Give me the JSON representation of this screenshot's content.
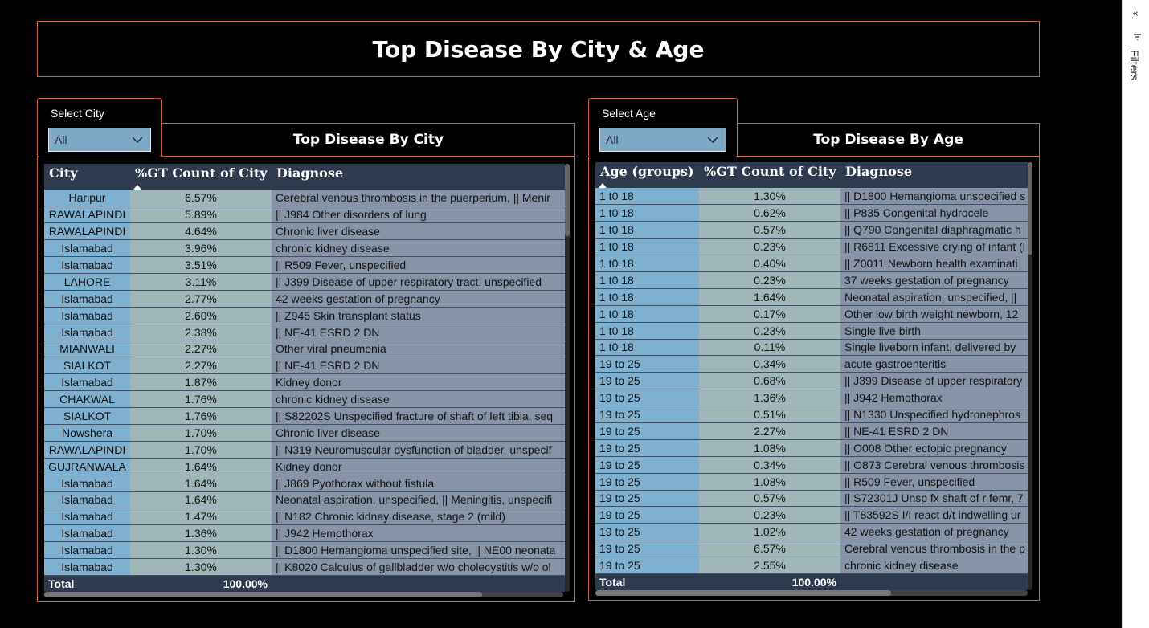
{
  "title": "Top Disease By City & Age",
  "filters_pane": {
    "collapse_icon": "double-chevron-left-icon",
    "filter_icon": "filter-icon",
    "label": "Filters"
  },
  "city_slicer": {
    "label": "Select City",
    "value": "All"
  },
  "age_slicer": {
    "label": "Select Age",
    "value": "All"
  },
  "city_table": {
    "title": "Top Disease By City",
    "columns": [
      "City",
      "%GT Count of City",
      "Diagnose"
    ],
    "sorted_column": "%GT Count of City",
    "rows": [
      [
        "Haripur",
        "6.57%",
        "Cerebral venous thrombosis in the puerperium, || Menir"
      ],
      [
        "RAWALAPINDI",
        "5.89%",
        "|| J984 Other disorders of lung"
      ],
      [
        "RAWALAPINDI",
        "4.64%",
        "Chronic liver disease"
      ],
      [
        "Islamabad",
        "3.96%",
        "chronic kidney disease"
      ],
      [
        "Islamabad",
        "3.51%",
        "|| R509 Fever, unspecified"
      ],
      [
        "LAHORE",
        "3.11%",
        "|| J399 Disease of upper respiratory tract, unspecified"
      ],
      [
        "Islamabad",
        "2.77%",
        "42 weeks gestation of pregnancy"
      ],
      [
        "Islamabad",
        "2.60%",
        "|| Z945 Skin transplant status"
      ],
      [
        "Islamabad",
        "2.38%",
        "|| NE-41 ESRD 2 DN"
      ],
      [
        "MIANWALI",
        "2.27%",
        "Other viral pneumonia"
      ],
      [
        "SIALKOT",
        "2.27%",
        "|| NE-41 ESRD 2 DN"
      ],
      [
        "Islamabad",
        "1.87%",
        "Kidney donor"
      ],
      [
        "CHAKWAL",
        "1.76%",
        "chronic kidney disease"
      ],
      [
        "SIALKOT",
        "1.76%",
        "|| S82202S Unspecified fracture of shaft of left tibia, seq"
      ],
      [
        "Nowshera",
        "1.70%",
        "Chronic liver disease"
      ],
      [
        "RAWALAPINDI",
        "1.70%",
        "|| N319 Neuromuscular dysfunction of bladder, unspecif"
      ],
      [
        "GUJRANWALA",
        "1.64%",
        "Kidney donor"
      ],
      [
        "Islamabad",
        "1.64%",
        "|| J869 Pyothorax without fistula"
      ],
      [
        "Islamabad",
        "1.64%",
        "Neonatal aspiration, unspecified, || Meningitis, unspecifi"
      ],
      [
        "Islamabad",
        "1.47%",
        "|| N182 Chronic kidney disease, stage 2 (mild)"
      ],
      [
        "Islamabad",
        "1.36%",
        "|| J942 Hemothorax"
      ],
      [
        "Islamabad",
        "1.30%",
        "|| D1800 Hemangioma unspecified site, || NE00 neonata"
      ],
      [
        "Islamabad",
        "1.30%",
        "|| K8020 Calculus of gallbladder w/o cholecystitis w/o ol"
      ]
    ],
    "total_label": "Total",
    "total_value": "100.00%"
  },
  "age_table": {
    "title": "Top Disease By Age",
    "columns": [
      "Age (groups)",
      "%GT Count of City",
      "Diagnose"
    ],
    "sorted_column": "Age (groups)",
    "rows": [
      [
        "1 t0 18",
        "1.30%",
        "|| D1800 Hemangioma unspecified s"
      ],
      [
        "1 t0 18",
        "0.62%",
        "|| P835 Congenital hydrocele"
      ],
      [
        "1 t0 18",
        "0.57%",
        "|| Q790 Congenital diaphragmatic h"
      ],
      [
        "1 t0 18",
        "0.23%",
        "|| R6811 Excessive crying of infant (l"
      ],
      [
        "1 t0 18",
        "0.40%",
        "|| Z0011 Newborn health examinati"
      ],
      [
        "1 t0 18",
        "0.23%",
        "37 weeks gestation of pregnancy"
      ],
      [
        "1 t0 18",
        "1.64%",
        "Neonatal aspiration, unspecified, ||"
      ],
      [
        "1 t0 18",
        "0.17%",
        "Other low birth weight newborn, 12"
      ],
      [
        "1 t0 18",
        "0.23%",
        "Single live birth"
      ],
      [
        "1 t0 18",
        "0.11%",
        "Single liveborn infant, delivered by"
      ],
      [
        "19 to 25",
        "0.34%",
        "acute gastroenteritis"
      ],
      [
        "19 to 25",
        "0.68%",
        "|| J399 Disease of upper respiratory"
      ],
      [
        "19 to 25",
        "1.36%",
        "|| J942 Hemothorax"
      ],
      [
        "19 to 25",
        "0.51%",
        "|| N1330 Unspecified hydronephros"
      ],
      [
        "19 to 25",
        "2.27%",
        "|| NE-41 ESRD 2 DN"
      ],
      [
        "19 to 25",
        "1.08%",
        "|| O008 Other ectopic pregnancy"
      ],
      [
        "19 to 25",
        "0.34%",
        "|| O873 Cerebral venous thrombosis"
      ],
      [
        "19 to 25",
        "1.08%",
        "|| R509 Fever, unspecified"
      ],
      [
        "19 to 25",
        "0.57%",
        "|| S72301J Unsp fx shaft of r femr, 7"
      ],
      [
        "19 to 25",
        "0.23%",
        "|| T83592S I/I react d/t indwelling ur"
      ],
      [
        "19 to 25",
        "1.02%",
        "42 weeks gestation of pregnancy"
      ],
      [
        "19 to 25",
        "6.57%",
        "Cerebral venous thrombosis in the p"
      ],
      [
        "19 to 25",
        "2.55%",
        "chronic kidney disease"
      ]
    ],
    "total_label": "Total",
    "total_value": "100.00%"
  }
}
